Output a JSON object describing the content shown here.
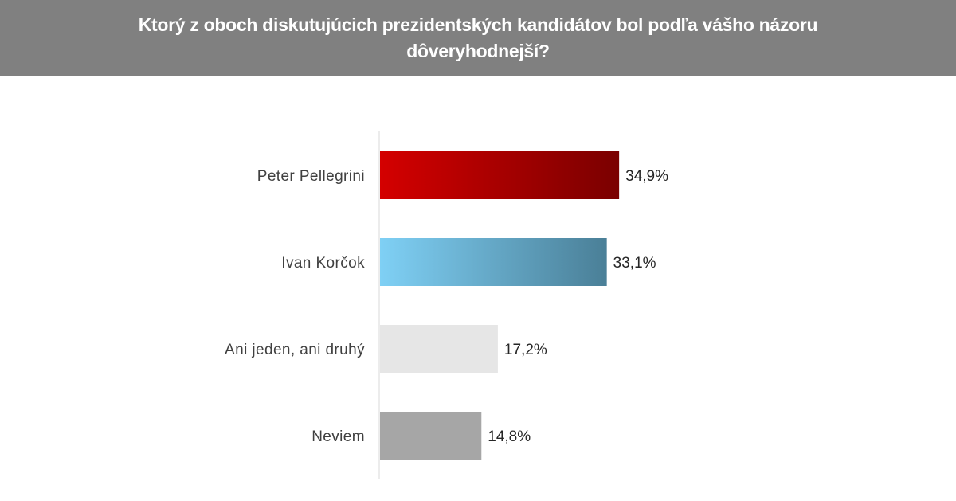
{
  "header": {
    "title": "Ktorý z oboch diskutujúcich prezidentských kandidátov bol podľa vášho názoru dôveryhodnejší?"
  },
  "chart_data": {
    "type": "bar",
    "orientation": "horizontal",
    "title": "Ktorý z oboch diskutujúcich prezidentských kandidátov bol podľa vášho názoru dôveryhodnejší?",
    "categories": [
      "Peter Pellegrini",
      "Ivan Korčok",
      "Ani jeden, ani druhý",
      "Neviem"
    ],
    "values": [
      34.9,
      33.1,
      17.2,
      14.8
    ],
    "value_labels": [
      "34,9%",
      "33,1%",
      "17,2%",
      "14,8%"
    ],
    "unit": "%",
    "xlim": [
      0,
      40
    ],
    "grid": false,
    "legend": "none",
    "bar_colors": [
      {
        "from": "#d40000",
        "to": "#7a0000"
      },
      {
        "from": "#7fd0f5",
        "to": "#4a7f97"
      },
      {
        "from": "#e6e6e6",
        "to": "#e6e6e6"
      },
      {
        "from": "#a6a6a6",
        "to": "#a6a6a6"
      }
    ]
  }
}
